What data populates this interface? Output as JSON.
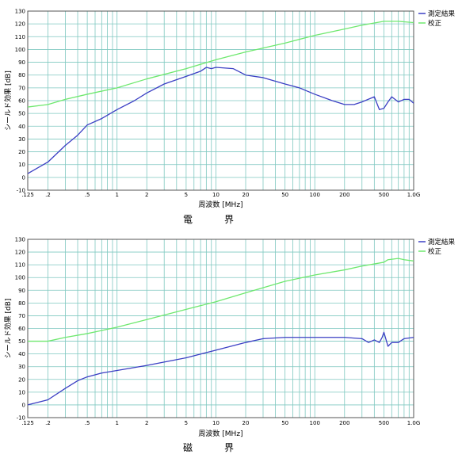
{
  "chart_data": [
    {
      "type": "line",
      "title": "電　界",
      "xlabel": "周波数 [MHz]",
      "ylabel": "シールド効果 [dB]",
      "x_scale": "log",
      "xlim": [
        0.125,
        1000
      ],
      "ylim": [
        -10,
        130
      ],
      "y_ticks": [
        130,
        120,
        110,
        100,
        90,
        80,
        70,
        60,
        50,
        40,
        30,
        20,
        10,
        0,
        -10
      ],
      "x_ticks": [
        {
          "value": 0.125,
          "label": ".125"
        },
        {
          "value": 0.2,
          "label": ".2"
        },
        {
          "value": 0.5,
          "label": ".5"
        },
        {
          "value": 1,
          "label": "1"
        },
        {
          "value": 2,
          "label": "2"
        },
        {
          "value": 5,
          "label": "5"
        },
        {
          "value": 10,
          "label": "10"
        },
        {
          "value": 20,
          "label": "20"
        },
        {
          "value": 50,
          "label": "50"
        },
        {
          "value": 100,
          "label": "100"
        },
        {
          "value": 200,
          "label": "200"
        },
        {
          "value": 500,
          "label": "500"
        },
        {
          "value": 1000,
          "label": "1.0G"
        }
      ],
      "grid": true,
      "legend_position": "top-right",
      "series": [
        {
          "name": "測定結果",
          "color": "#3b3fc4",
          "points": [
            [
              0.125,
              3
            ],
            [
              0.2,
              12
            ],
            [
              0.3,
              25
            ],
            [
              0.4,
              33
            ],
            [
              0.5,
              41
            ],
            [
              0.7,
              46
            ],
            [
              1,
              53
            ],
            [
              1.5,
              60
            ],
            [
              2,
              66
            ],
            [
              3,
              73
            ],
            [
              5,
              79
            ],
            [
              7,
              83
            ],
            [
              8,
              86
            ],
            [
              9,
              85
            ],
            [
              10,
              86
            ],
            [
              15,
              85
            ],
            [
              20,
              80
            ],
            [
              30,
              78
            ],
            [
              50,
              73
            ],
            [
              70,
              70
            ],
            [
              100,
              65
            ],
            [
              150,
              60
            ],
            [
              200,
              57
            ],
            [
              250,
              57
            ],
            [
              300,
              59
            ],
            [
              400,
              63
            ],
            [
              450,
              53
            ],
            [
              500,
              54
            ],
            [
              550,
              59
            ],
            [
              600,
              63
            ],
            [
              700,
              59
            ],
            [
              800,
              61
            ],
            [
              900,
              61
            ],
            [
              1000,
              58
            ]
          ]
        },
        {
          "name": "校正",
          "color": "#6ee86e",
          "points": [
            [
              0.125,
              55
            ],
            [
              0.2,
              57
            ],
            [
              0.3,
              61
            ],
            [
              0.5,
              65
            ],
            [
              1,
              70
            ],
            [
              2,
              77
            ],
            [
              5,
              85
            ],
            [
              10,
              92
            ],
            [
              20,
              98
            ],
            [
              50,
              105
            ],
            [
              100,
              111
            ],
            [
              200,
              116
            ],
            [
              300,
              119
            ],
            [
              500,
              122
            ],
            [
              700,
              122
            ],
            [
              1000,
              121
            ]
          ]
        }
      ]
    },
    {
      "type": "line",
      "title": "磁　界",
      "xlabel": "周波数 [MHz]",
      "ylabel": "シールド効果 [dB]",
      "x_scale": "log",
      "xlim": [
        0.125,
        1000
      ],
      "ylim": [
        -10,
        130
      ],
      "y_ticks": [
        130,
        120,
        110,
        100,
        90,
        80,
        70,
        60,
        50,
        40,
        30,
        20,
        10,
        0,
        -10
      ],
      "x_ticks": [
        {
          "value": 0.125,
          "label": ".125"
        },
        {
          "value": 0.2,
          "label": ".2"
        },
        {
          "value": 0.5,
          "label": ".5"
        },
        {
          "value": 1,
          "label": "1"
        },
        {
          "value": 2,
          "label": "2"
        },
        {
          "value": 5,
          "label": "5"
        },
        {
          "value": 10,
          "label": "10"
        },
        {
          "value": 20,
          "label": "20"
        },
        {
          "value": 50,
          "label": "50"
        },
        {
          "value": 100,
          "label": "100"
        },
        {
          "value": 200,
          "label": "200"
        },
        {
          "value": 500,
          "label": "500"
        },
        {
          "value": 1000,
          "label": "1.0G"
        }
      ],
      "grid": true,
      "legend_position": "top-right",
      "series": [
        {
          "name": "測定結果",
          "color": "#3b3fc4",
          "points": [
            [
              0.125,
              0
            ],
            [
              0.2,
              4
            ],
            [
              0.3,
              13
            ],
            [
              0.4,
              19
            ],
            [
              0.5,
              22
            ],
            [
              0.7,
              25
            ],
            [
              1,
              27
            ],
            [
              2,
              31
            ],
            [
              5,
              37
            ],
            [
              10,
              43
            ],
            [
              20,
              49
            ],
            [
              30,
              52
            ],
            [
              50,
              53
            ],
            [
              100,
              53
            ],
            [
              200,
              53
            ],
            [
              300,
              52
            ],
            [
              350,
              49
            ],
            [
              400,
              51
            ],
            [
              450,
              49
            ],
            [
              480,
              53
            ],
            [
              500,
              57
            ],
            [
              550,
              46
            ],
            [
              600,
              49
            ],
            [
              700,
              49
            ],
            [
              800,
              52
            ],
            [
              1000,
              53
            ]
          ]
        },
        {
          "name": "校正",
          "color": "#6ee86e",
          "points": [
            [
              0.125,
              50
            ],
            [
              0.2,
              50
            ],
            [
              0.3,
              53
            ],
            [
              0.5,
              56
            ],
            [
              1,
              61
            ],
            [
              2,
              67
            ],
            [
              5,
              75
            ],
            [
              10,
              81
            ],
            [
              20,
              88
            ],
            [
              50,
              97
            ],
            [
              100,
              102
            ],
            [
              200,
              106
            ],
            [
              300,
              109
            ],
            [
              500,
              112
            ],
            [
              550,
              114
            ],
            [
              700,
              115
            ],
            [
              800,
              114
            ],
            [
              1000,
              113
            ]
          ]
        }
      ]
    }
  ]
}
